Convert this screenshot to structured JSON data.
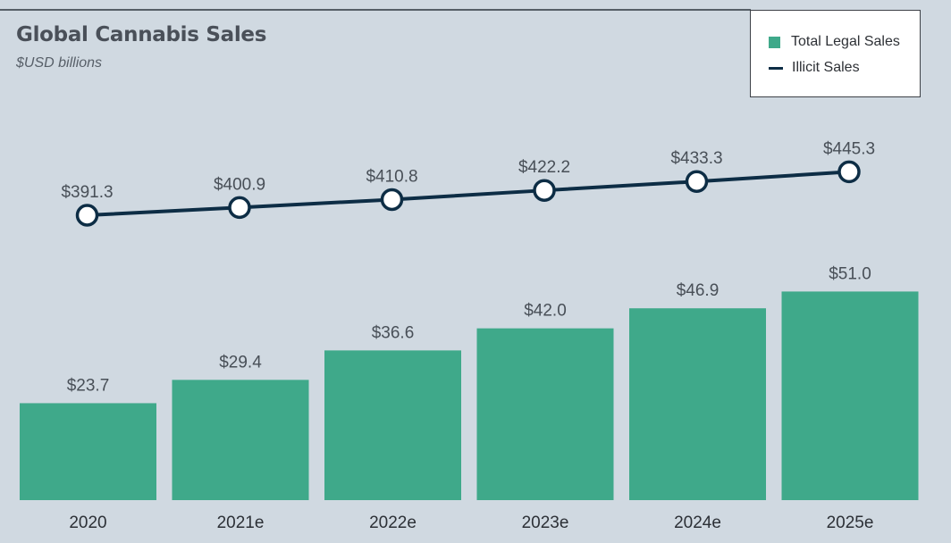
{
  "header": {
    "title": "Global Cannabis Sales",
    "subtitle": "$USD billions"
  },
  "legend": {
    "items": [
      {
        "label": "Total Legal Sales",
        "type": "bar",
        "color": "#3fa98a"
      },
      {
        "label": "Illicit Sales",
        "type": "line",
        "color": "#0d2d45"
      }
    ]
  },
  "chart_data": {
    "type": "bar",
    "title": "Global Cannabis Sales",
    "subtitle": "$USD billions",
    "categories": [
      "2020",
      "2021e",
      "2022e",
      "2023e",
      "2024e",
      "2025e"
    ],
    "series": [
      {
        "name": "Total Legal Sales",
        "type": "bar",
        "color": "#3fa98a",
        "values": [
          23.7,
          29.4,
          36.6,
          42.0,
          46.9,
          51.0
        ],
        "labels": [
          "$23.7",
          "$29.4",
          "$36.6",
          "$42.0",
          "$46.9",
          "$51.0"
        ]
      },
      {
        "name": "Illicit Sales",
        "type": "line",
        "color": "#0d2d45",
        "values": [
          391.3,
          400.9,
          410.8,
          422.2,
          433.3,
          445.3
        ],
        "labels": [
          "$391.3",
          "$400.9",
          "$410.8",
          "$422.2",
          "$433.3",
          "$445.3"
        ]
      }
    ],
    "legend_position": "top-right",
    "grid": false
  }
}
